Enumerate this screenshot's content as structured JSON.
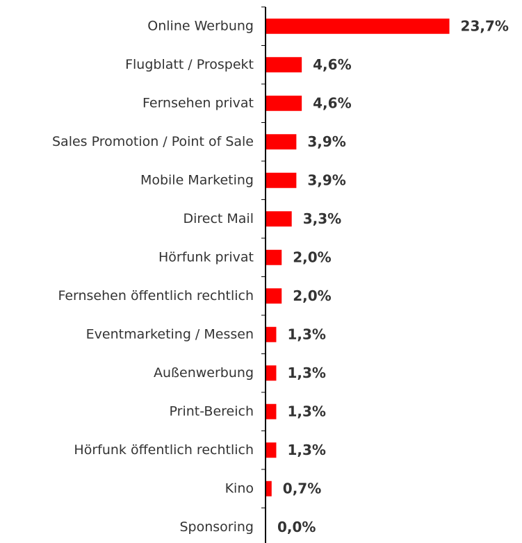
{
  "chart_data": {
    "type": "hbar",
    "categories": [
      "Online Werbung",
      "Flugblatt / Prospekt",
      "Fernsehen privat",
      "Sales Promotion / Point of Sale",
      "Mobile Marketing",
      "Direct Mail",
      "Hörfunk privat",
      "Fernsehen öffentlich rechtlich",
      "Eventmarketing / Messen",
      "Außenwerbung",
      "Print-Bereich",
      "Hörfunk öffentlich rechtlich",
      "Kino",
      "Sponsoring"
    ],
    "values": [
      23.7,
      4.6,
      4.6,
      3.9,
      3.9,
      3.3,
      2.0,
      2.0,
      1.3,
      1.3,
      1.3,
      1.3,
      0.7,
      0.0
    ],
    "value_labels": [
      "23,7%",
      "4,6%",
      "4,6%",
      "3,9%",
      "3,9%",
      "3,3%",
      "2,0%",
      "2,0%",
      "1,3%",
      "1,3%",
      "1,3%",
      "1,3%",
      "0,7%",
      "0,0%"
    ],
    "color": "#ff0000",
    "xlim": [
      0,
      25
    ]
  }
}
